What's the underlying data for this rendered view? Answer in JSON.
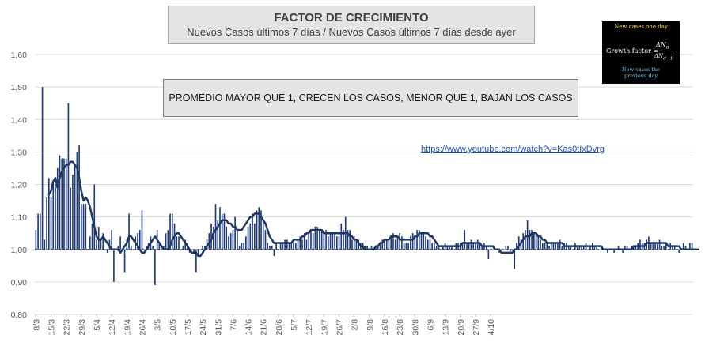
{
  "title": "FACTOR DE CRECIMIENTO",
  "subtitle": "Nuevos Casos últimos 7 días / Nuevos Casos últimos 7 días desde ayer",
  "note": "PROMEDIO MAYOR QUE 1, CRECEN LOS CASOS, MENOR QUE 1, BAJAN LOS CASOS",
  "link": "https://www.youtube.com/watch?v=Kas0tIxDvrg",
  "formula": {
    "top_label": "New cases one day",
    "label": "Growth factor =",
    "numerator": "ΔN",
    "numerator_sub": "d",
    "denominator": "ΔN",
    "denominator_sub": "d−1",
    "bottom_label_1": "New cases the",
    "bottom_label_2": "previous day"
  },
  "colors": {
    "bars": "#1f3a7a",
    "avg_line": "#1f3864",
    "axis_text": "#595959",
    "gridline": "#d9d9d9"
  },
  "chart_data": {
    "type": "bar",
    "xlabel": "",
    "ylabel": "",
    "ylim": [
      0.8,
      1.6
    ],
    "yticks": [
      "0,80",
      "0,90",
      "1,00",
      "1,10",
      "1,20",
      "1,30",
      "1,40",
      "1,50",
      "1,60"
    ],
    "grid": "horizontal",
    "x_tick_labels": [
      "8/3",
      "15/3",
      "22/3",
      "29/3",
      "5/4",
      "12/4",
      "19/4",
      "26/4",
      "3/5",
      "10/5",
      "17/5",
      "24/5",
      "31/5",
      "7/6",
      "14/6",
      "21/6",
      "28/6",
      "5/7",
      "12/7",
      "19/7",
      "26/7",
      "2/8",
      "9/8",
      "16/8",
      "23/8",
      "30/8",
      "6/9",
      "13/9",
      "20/9",
      "27/9",
      "4/10"
    ],
    "start_date": "2020-03-08",
    "x_label_interval_days": 7,
    "series": [
      {
        "kind": "bar",
        "values": [
          1.06,
          1.11,
          1.11,
          1.5,
          1.03,
          1.16,
          1.22,
          1.16,
          1.21,
          1.2,
          1.25,
          1.29,
          1.28,
          1.28,
          1.28,
          1.45,
          1.19,
          1.23,
          1.26,
          1.3,
          1.32,
          1.14,
          1.14,
          1.14,
          1.0,
          1.04,
          1.08,
          1.2,
          1.03,
          1.07,
          1.03,
          1.05,
          1.0,
          0.99,
          1.03,
          1.06,
          0.9,
          1.0,
          1.01,
          1.04,
          1.0,
          0.93,
          1.03,
          1.11,
          1.01,
          1.0,
          1.04,
          1.05,
          1.06,
          1.12,
          1.0,
          1.01,
          1.02,
          1.04,
          1.01,
          0.89,
          1.06,
          1.02,
          1.0,
          1.01,
          1.05,
          1.06,
          1.11,
          1.11,
          1.08,
          1.04,
          1.04,
          1.0,
          1.01,
          1.03,
          1.02,
          0.99,
          1.0,
          0.99,
          0.93,
          0.98,
          1.0,
          1.01,
          1.01,
          1.03,
          1.05,
          1.08,
          1.07,
          1.14,
          1.09,
          1.13,
          1.11,
          1.11,
          1.07,
          1.04,
          1.05,
          1.06,
          1.1,
          1.06,
          1.01,
          1.02,
          1.02,
          1.04,
          1.07,
          1.08,
          1.11,
          1.08,
          1.12,
          1.13,
          1.12,
          1.09,
          1.06,
          1.02,
          1.01,
          1.01,
          0.98,
          1.02,
          1.0,
          1.02,
          1.02,
          1.03,
          1.03,
          1.02,
          1.02,
          1.02,
          1.02,
          1.03,
          1.04,
          1.03,
          1.05,
          1.03,
          1.05,
          1.06,
          1.05,
          1.07,
          1.07,
          1.06,
          1.06,
          1.05,
          1.06,
          1.04,
          1.05,
          1.05,
          1.05,
          1.04,
          1.04,
          1.08,
          1.06,
          1.1,
          1.06,
          1.06,
          1.03,
          1.04,
          1.03,
          1.03,
          1.02,
          1.02,
          1.01,
          1.01,
          1.0,
          1.01,
          1.0,
          1.01,
          1.01,
          1.02,
          1.03,
          1.03,
          1.03,
          1.03,
          1.04,
          1.05,
          1.03,
          1.04,
          1.05,
          1.04,
          1.02,
          1.02,
          1.02,
          1.04,
          1.05,
          1.04,
          1.06,
          1.06,
          1.05,
          1.05,
          1.04,
          1.03,
          1.03,
          1.02,
          1.02,
          1.01,
          1.01,
          1.0,
          1.01,
          1.02,
          1.01,
          1.01,
          1.01,
          1.0,
          1.02,
          1.02,
          1.02,
          1.02,
          1.06,
          1.02,
          1.02,
          1.03,
          1.02,
          1.02,
          1.03,
          1.02,
          1.01,
          1.02,
          1.01,
          0.97,
          1.0,
          1.0,
          1.0,
          1.0,
          0.99,
          1.0,
          1.0,
          1.01,
          1.01,
          0.99,
          1.0,
          0.94,
          1.02,
          1.04,
          1.03,
          1.05,
          1.06,
          1.09,
          1.06,
          1.06,
          1.05,
          1.05,
          1.04,
          1.03,
          1.02,
          1.02,
          1.02,
          1.01,
          1.02,
          1.02,
          1.02,
          1.02,
          1.03,
          1.01,
          1.02,
          1.02,
          1.01,
          1.01,
          1.0,
          1.02,
          1.01,
          1.01,
          1.01,
          1.01,
          1.02,
          1.0,
          1.01,
          1.02,
          1.01,
          1.01,
          1.0,
          1.01,
          1.0,
          1.0,
          0.99,
          1.0,
          1.0,
          0.99,
          1.0,
          1.01,
          1.0,
          0.99,
          1.01,
          1.01,
          1.0,
          1.01,
          1.01,
          1.01,
          1.02,
          1.03,
          1.02,
          1.02,
          1.03,
          1.04,
          1.02,
          1.02,
          1.02,
          1.02,
          1.03,
          1.01,
          1.01,
          1.02,
          1.0,
          1.02,
          1.01,
          1.01,
          1.0,
          0.99,
          1.0,
          1.02,
          1.01,
          1.0,
          1.02,
          1.02
        ]
      },
      {
        "kind": "line",
        "start_index": 6,
        "values": [
          1.17,
          1.18,
          1.21,
          1.22,
          1.19,
          1.22,
          1.24,
          1.25,
          1.26,
          1.26,
          1.27,
          1.27,
          1.26,
          1.25,
          1.22,
          1.18,
          1.15,
          1.16,
          1.15,
          1.13,
          1.1,
          1.07,
          1.04,
          1.03,
          1.03,
          1.04,
          1.03,
          1.02,
          1.01,
          1.0,
          1.0,
          1.0,
          1.0,
          0.99,
          1.0,
          1.01,
          1.02,
          1.04,
          1.04,
          1.03,
          1.02,
          1.01,
          1.0,
          0.99,
          0.99,
          1.0,
          1.01,
          1.02,
          1.03,
          1.04,
          1.03,
          1.02,
          1.01,
          1.0,
          1.0,
          1.0,
          1.01,
          1.03,
          1.04,
          1.05,
          1.05,
          1.04,
          1.03,
          1.02,
          1.01,
          1.0,
          0.99,
          0.99,
          0.99,
          0.98,
          0.98,
          0.99,
          1.0,
          1.01,
          1.02,
          1.03,
          1.05,
          1.06,
          1.07,
          1.08,
          1.09,
          1.09,
          1.09,
          1.08,
          1.08,
          1.07,
          1.07,
          1.06,
          1.06,
          1.06,
          1.07,
          1.08,
          1.09,
          1.1,
          1.1,
          1.11,
          1.11,
          1.11,
          1.1,
          1.09,
          1.08,
          1.06,
          1.04,
          1.03,
          1.02,
          1.02,
          1.02,
          1.02,
          1.02,
          1.02,
          1.02,
          1.02,
          1.02,
          1.03,
          1.03,
          1.03,
          1.03,
          1.04,
          1.04,
          1.05,
          1.05,
          1.06,
          1.06,
          1.06,
          1.06,
          1.06,
          1.06,
          1.05,
          1.05,
          1.05,
          1.05,
          1.05,
          1.05,
          1.05,
          1.05,
          1.05,
          1.05,
          1.05,
          1.05,
          1.04,
          1.04,
          1.03,
          1.03,
          1.02,
          1.01,
          1.01,
          1.0,
          1.0,
          1.0,
          1.0,
          1.0,
          1.01,
          1.01,
          1.02,
          1.02,
          1.03,
          1.03,
          1.03,
          1.04,
          1.04,
          1.04,
          1.04,
          1.03,
          1.03,
          1.03,
          1.03,
          1.03,
          1.03,
          1.03,
          1.04,
          1.04,
          1.05,
          1.05,
          1.05,
          1.05,
          1.05,
          1.04,
          1.04,
          1.03,
          1.02,
          1.01,
          1.01,
          1.01,
          1.01,
          1.01,
          1.01,
          1.01,
          1.01,
          1.01,
          1.01,
          1.01,
          1.02,
          1.02,
          1.02,
          1.02,
          1.02,
          1.02,
          1.02,
          1.02,
          1.02,
          1.01,
          1.01,
          1.01,
          1.01,
          1.01,
          1.01,
          1.0,
          1.0,
          1.0,
          0.99,
          0.99,
          0.99,
          0.99,
          0.99,
          0.99,
          1.0,
          1.0,
          1.01,
          1.02,
          1.03,
          1.04,
          1.04,
          1.04,
          1.05,
          1.05,
          1.05,
          1.04,
          1.04,
          1.03,
          1.03,
          1.02,
          1.02,
          1.02,
          1.02,
          1.02,
          1.02,
          1.02,
          1.02,
          1.01,
          1.01,
          1.01,
          1.01,
          1.01,
          1.01,
          1.01,
          1.01,
          1.01,
          1.01,
          1.01,
          1.01,
          1.01,
          1.01,
          1.01,
          1.01,
          1.01,
          1.01,
          1.0,
          1.0,
          1.0,
          1.0,
          1.0,
          1.0,
          1.0,
          1.0,
          1.0,
          1.0,
          1.0,
          1.0,
          1.0,
          1.0,
          1.01,
          1.01,
          1.01,
          1.01,
          1.01,
          1.01,
          1.02,
          1.02,
          1.02,
          1.02,
          1.02,
          1.02,
          1.02,
          1.02,
          1.02,
          1.02,
          1.01,
          1.01,
          1.01,
          1.01,
          1.01,
          1.01,
          1.0,
          1.0,
          1.0,
          1.0,
          1.0,
          1.0,
          1.0,
          1.0,
          1.0
        ]
      }
    ]
  }
}
